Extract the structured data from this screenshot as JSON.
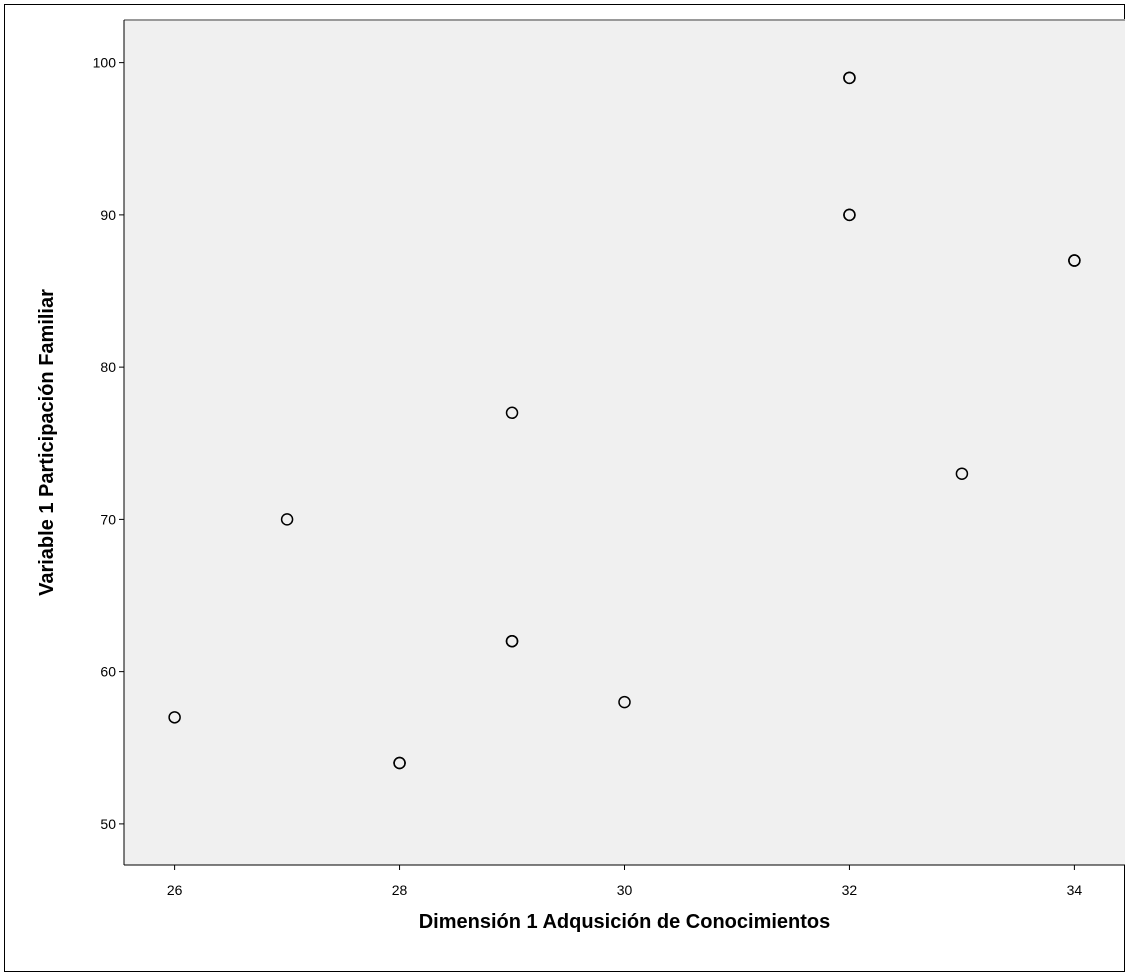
{
  "chart_data": {
    "type": "scatter",
    "xlabel": "Dimensión 1 Adqusición de Conocimientos",
    "ylabel": "Variable 1 Participación Familiar",
    "xlim": [
      25.55,
      34.45
    ],
    "ylim": [
      47.3,
      102.8
    ],
    "x_ticks": [
      26,
      28,
      30,
      32,
      34
    ],
    "y_ticks": [
      50,
      60,
      70,
      80,
      90,
      100
    ],
    "grid": false,
    "background_color": "#f0f0f0",
    "marker_color": "#000000",
    "points": [
      {
        "x": 26,
        "y": 57
      },
      {
        "x": 27,
        "y": 70
      },
      {
        "x": 28,
        "y": 54
      },
      {
        "x": 28,
        "y": 54
      },
      {
        "x": 29,
        "y": 77
      },
      {
        "x": 29,
        "y": 62
      },
      {
        "x": 29,
        "y": 62
      },
      {
        "x": 30,
        "y": 58
      },
      {
        "x": 32,
        "y": 99
      },
      {
        "x": 32,
        "y": 99
      },
      {
        "x": 32,
        "y": 90
      },
      {
        "x": 32,
        "y": 90
      },
      {
        "x": 33,
        "y": 73
      },
      {
        "x": 34,
        "y": 87
      },
      {
        "x": 34,
        "y": 87
      }
    ]
  }
}
